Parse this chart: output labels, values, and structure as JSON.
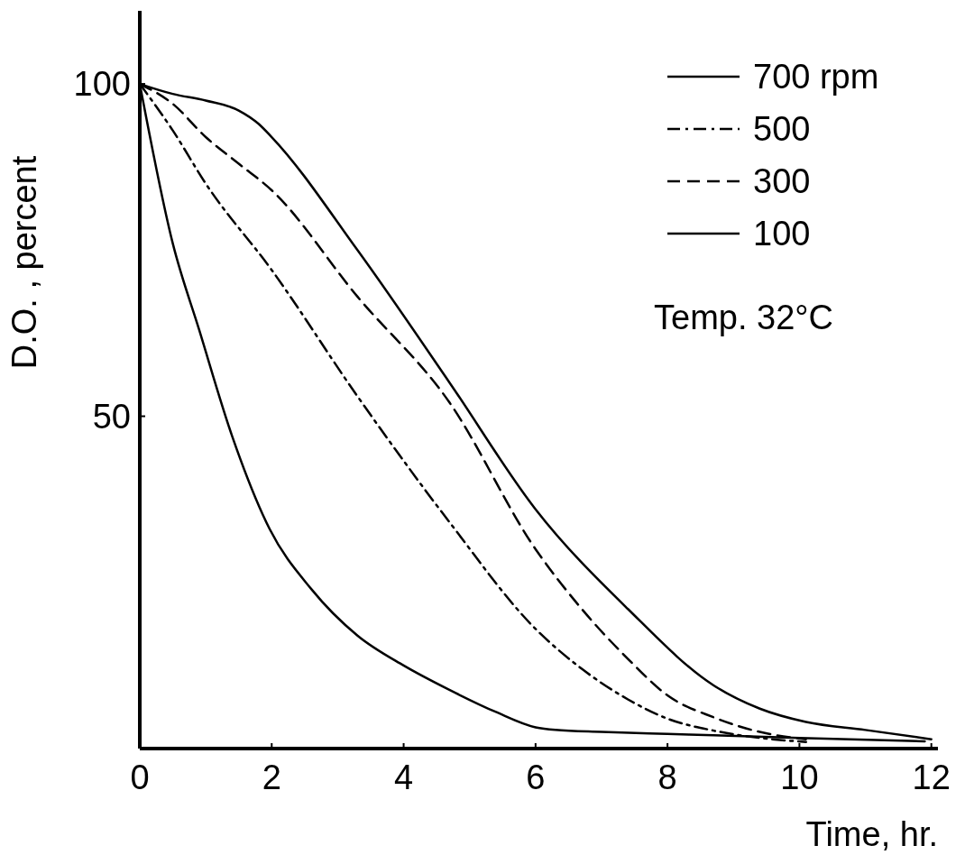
{
  "chart_data": {
    "type": "line",
    "xlabel": "Time,  hr.",
    "ylabel": "D.O. , percent",
    "xlim": [
      0,
      12.1
    ],
    "ylim": [
      0,
      111
    ],
    "xticks": [
      0,
      2,
      4,
      6,
      8,
      10,
      12
    ],
    "yticks": [
      50,
      100
    ],
    "grid": false,
    "legend": "top right",
    "annotations": [
      "Temp. 32°C"
    ],
    "series": [
      {
        "name": "700 rpm",
        "color": "#000000",
        "line_style": "solid",
        "x": [
          0,
          0.5,
          0.9,
          1.4,
          1.97,
          2.6,
          3.3,
          4,
          4.7,
          5.4,
          6,
          6.3,
          7,
          8,
          8.7,
          10,
          11.9
        ],
        "values": [
          100,
          76,
          63,
          47,
          33,
          24,
          17,
          12.5,
          8.8,
          5.5,
          3.2,
          2.8,
          2.5,
          2.2,
          2,
          1.6,
          1.1
        ]
      },
      {
        "name": "500",
        "color": "#000000",
        "line_style": "dashdot",
        "x": [
          0,
          0.5,
          1,
          2,
          3.3,
          4.7,
          6,
          6.7,
          7.4,
          8,
          8.7,
          9.4,
          10.1
        ],
        "values": [
          100,
          93,
          85,
          72,
          53,
          34,
          18,
          12,
          7.4,
          4.5,
          2.7,
          1.6,
          1
        ]
      },
      {
        "name": "300",
        "color": "#000000",
        "line_style": "dashed",
        "x": [
          0,
          0.5,
          1,
          1.5,
          2,
          3.3,
          4.7,
          6,
          6.7,
          7.4,
          8,
          8.7,
          9.4,
          10.1
        ],
        "values": [
          100,
          97,
          92,
          88,
          84,
          68,
          52,
          30,
          21,
          13.5,
          8,
          4.7,
          2.5,
          1.4
        ]
      },
      {
        "name": "100",
        "color": "#000000",
        "line_style": "solid",
        "x": [
          0,
          0.5,
          1,
          1.5,
          1.8,
          2,
          3.3,
          4.7,
          6,
          7.4,
          8.7,
          9.4,
          10.1,
          11,
          12
        ],
        "values": [
          100,
          98.5,
          97.5,
          96,
          94,
          92,
          75,
          55,
          36,
          21,
          9.5,
          6,
          4,
          2.8,
          1.4
        ]
      }
    ]
  }
}
